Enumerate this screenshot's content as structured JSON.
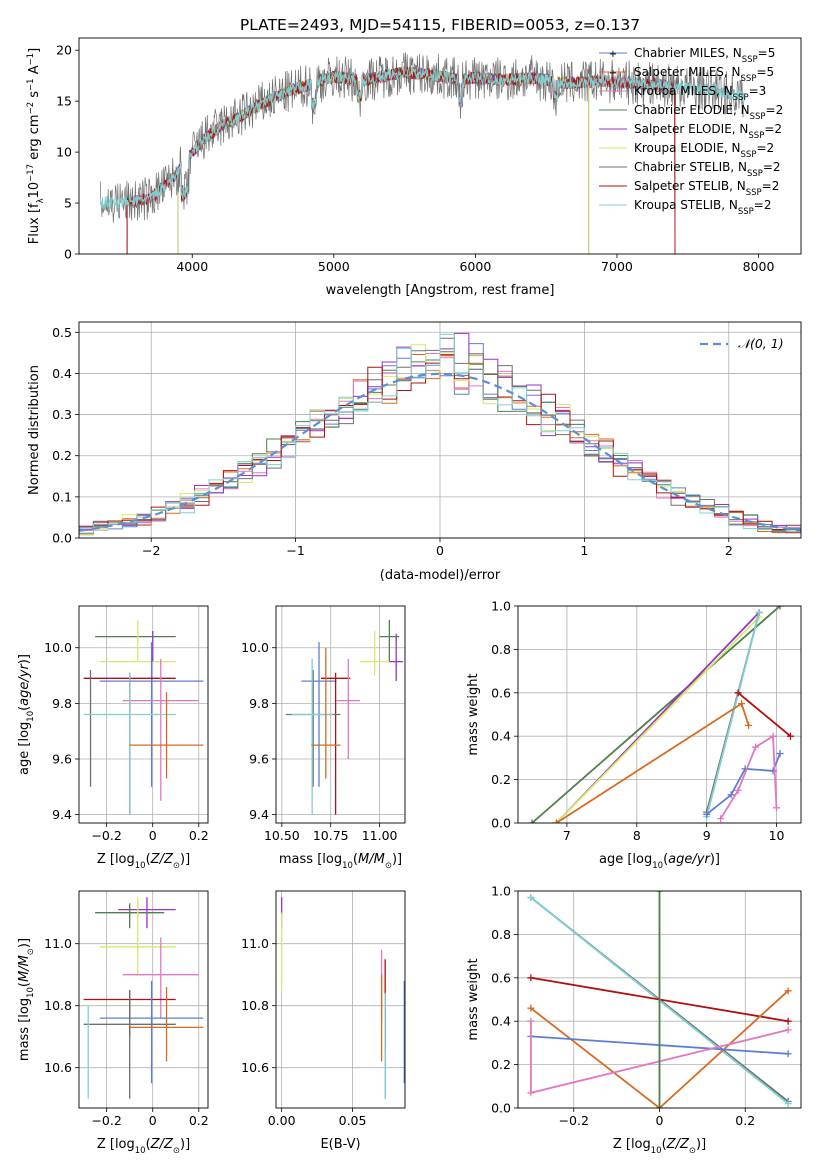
{
  "figure": {
    "title": "PLATE=2493, MJD=54115, FIBERID=0053, z=0.137"
  },
  "colors": {
    "Chabrier MILES": "#5b7fd6",
    "Salpeter MILES": "#d96a21",
    "Kroupa MILES": "#e377c2",
    "Chabrier ELODIE": "#4f7f50",
    "Salpeter ELODIE": "#9a32c8",
    "Kroupa ELODIE": "#d7e86a",
    "Chabrier STELIB": "#707070",
    "Salpeter STELIB": "#b01010",
    "Kroupa STELIB": "#7fd0d0"
  },
  "chart_data": [
    {
      "id": "spectrum",
      "type": "line",
      "xlabel": "wavelength [Angstrom, rest frame]",
      "ylabel_parts": [
        "Flux [f",
        "λ",
        "10",
        "−17",
        " erg cm",
        "−2",
        " s",
        "−1",
        " A",
        "−1",
        "]"
      ],
      "xlim": [
        3200,
        8300
      ],
      "ylim": [
        0,
        21.2
      ],
      "xticks": [
        4000,
        5000,
        6000,
        7000,
        8000
      ],
      "yticks": [
        0,
        5,
        10,
        15,
        20
      ],
      "legend": [
        {
          "name": "Chabrier MILES",
          "nssp": "5"
        },
        {
          "name": "Salpeter MILES",
          "nssp": "5"
        },
        {
          "name": "Kroupa MILES",
          "nssp": "3"
        },
        {
          "name": "Chabrier ELODIE",
          "nssp": "2"
        },
        {
          "name": "Salpeter ELODIE",
          "nssp": "2"
        },
        {
          "name": "Kroupa ELODIE",
          "nssp": "2"
        },
        {
          "name": "Chabrier STELIB",
          "nssp": "2"
        },
        {
          "name": "Salpeter STELIB",
          "nssp": "2"
        },
        {
          "name": "Kroupa STELIB",
          "nssp": "2"
        }
      ],
      "continuum": [
        [
          3350,
          5.0
        ],
        [
          3600,
          5.2
        ],
        [
          3700,
          5.5
        ],
        [
          3800,
          6.6
        ],
        [
          3900,
          8.0
        ],
        [
          3950,
          9.0
        ],
        [
          4000,
          10.0
        ],
        [
          4100,
          11.5
        ],
        [
          4200,
          12.5
        ],
        [
          4300,
          13.2
        ],
        [
          4400,
          14.0
        ],
        [
          4500,
          14.8
        ],
        [
          4600,
          15.5
        ],
        [
          4700,
          16.0
        ],
        [
          4800,
          16.5
        ],
        [
          4900,
          17.0
        ],
        [
          5000,
          17.4
        ],
        [
          5100,
          17.2
        ],
        [
          5200,
          17.0
        ],
        [
          5300,
          17.3
        ],
        [
          5400,
          17.6
        ],
        [
          5500,
          17.8
        ],
        [
          5600,
          17.7
        ],
        [
          5700,
          17.6
        ],
        [
          5800,
          17.3
        ],
        [
          5900,
          17.0
        ],
        [
          6000,
          17.3
        ],
        [
          6100,
          17.2
        ],
        [
          6200,
          17.1
        ],
        [
          6300,
          17.2
        ],
        [
          6400,
          17.3
        ],
        [
          6500,
          17.1
        ],
        [
          6600,
          16.8
        ],
        [
          6700,
          16.8
        ],
        [
          6800,
          16.9
        ],
        [
          6900,
          17.0
        ],
        [
          7000,
          16.9
        ],
        [
          7100,
          16.8
        ],
        [
          7200,
          16.7
        ],
        [
          7300,
          16.6
        ],
        [
          7400,
          16.4
        ],
        [
          7500,
          16.3
        ],
        [
          7600,
          16.2
        ],
        [
          7700,
          16.1
        ],
        [
          7800,
          15.7
        ],
        [
          7900,
          15.5
        ]
      ],
      "model_ranges": {
        "Chabrier MILES": [
          3540,
          7410
        ],
        "Salpeter MILES": [
          3540,
          7410
        ],
        "Kroupa MILES": [
          3540,
          7410
        ],
        "Chabrier ELODIE": [
          3900,
          6800
        ],
        "Salpeter ELODIE": [
          3900,
          6800
        ],
        "Kroupa ELODIE": [
          3900,
          6800
        ],
        "Chabrier STELIB": [
          3350,
          7900
        ],
        "Salpeter STELIB": [
          3540,
          7410
        ],
        "Kroupa STELIB": [
          3350,
          7900
        ]
      }
    },
    {
      "id": "residual-histogram",
      "type": "line",
      "xlabel": "(data-model)/error",
      "ylabel": "Normed distribution",
      "xlim": [
        -2.5,
        2.5
      ],
      "ylim": [
        0,
        0.525
      ],
      "xticks": [
        -2,
        -1,
        0,
        1,
        2
      ],
      "yticks": [
        0.0,
        0.1,
        0.2,
        0.3,
        0.4,
        0.5
      ],
      "bin_width": 0.1,
      "legend_label": "𝒩(0, 1)",
      "normal": {
        "mu": 0,
        "sigma": 1
      }
    },
    {
      "id": "age-vs-metallicity",
      "type": "scatter",
      "xlabel": "Z [log10(Z/Z⊙)]",
      "ylabel": "age [log10(age/yr)]",
      "xlim": [
        -0.32,
        0.24
      ],
      "ylim": [
        9.37,
        10.15
      ],
      "xticks": [
        -0.2,
        0.0,
        0.2
      ],
      "yticks": [
        9.4,
        9.6,
        9.8,
        10.0
      ],
      "points": [
        {
          "model": "Chabrier ELODIE",
          "x": [
            -0.25,
            0.1
          ],
          "y": 10.04,
          "yerr": [
            10.04,
            10.04
          ]
        },
        {
          "model": "Kroupa ELODIE",
          "x": [
            -0.23,
            0.1
          ],
          "y": 9.95,
          "yerr": [
            9.95,
            10.1
          ]
        },
        {
          "model": "Salpeter ELODIE",
          "x": [
            0.0,
            0.0
          ],
          "y": 9.95,
          "yerr": [
            9.95,
            10.06
          ]
        },
        {
          "model": "Chabrier MILES",
          "x": [
            -0.23,
            0.22
          ],
          "y": 9.88,
          "yerr": [
            9.5,
            10.02
          ]
        },
        {
          "model": "Salpeter STELIB",
          "x": [
            -0.3,
            0.1
          ],
          "y": 9.89,
          "yerr": [
            9.4,
            9.91
          ]
        },
        {
          "model": "Chabrier STELIB",
          "x": [
            -0.27,
            -0.27
          ],
          "y": 9.89,
          "yerr": [
            9.5,
            9.92
          ]
        },
        {
          "model": "Kroupa MILES",
          "x": [
            -0.13,
            0.2
          ],
          "y": 9.81,
          "yerr": [
            9.45,
            9.96
          ]
        },
        {
          "model": "Kroupa STELIB",
          "x": [
            -0.3,
            0.1
          ],
          "y": 9.76,
          "yerr": [
            9.4,
            9.91
          ]
        },
        {
          "model": "Salpeter MILES",
          "x": [
            -0.1,
            0.22
          ],
          "y": 9.65,
          "yerr": [
            9.53,
            9.84
          ]
        }
      ]
    },
    {
      "id": "age-vs-mass",
      "type": "scatter",
      "xlabel": "mass [log10(M/M⊙)]",
      "ylabel": "",
      "xlim": [
        10.47,
        11.13
      ],
      "ylim": [
        9.37,
        10.15
      ],
      "xticks": [
        10.5,
        10.75,
        11.0
      ],
      "xticklabels": [
        "10.50",
        "10.75",
        "11.00"
      ],
      "yticks": [
        9.4,
        9.6,
        9.8,
        10.0
      ],
      "points": [
        {
          "model": "Chabrier ELODIE",
          "x": [
            11.0,
            11.1
          ],
          "y": 10.04,
          "yerr": [
            9.95,
            10.1
          ]
        },
        {
          "model": "Kroupa ELODIE",
          "x": [
            10.9,
            11.05
          ],
          "y": 9.95,
          "yerr": [
            9.9,
            10.06
          ]
        },
        {
          "model": "Salpeter ELODIE",
          "x": [
            11.05,
            11.12
          ],
          "y": 9.95,
          "yerr": [
            9.88,
            10.05
          ]
        },
        {
          "model": "Chabrier MILES",
          "x": [
            10.6,
            10.78
          ],
          "y": 9.88,
          "yerr": [
            9.5,
            10.02
          ]
        },
        {
          "model": "Salpeter STELIB",
          "x": [
            10.7,
            10.85
          ],
          "y": 9.89,
          "yerr": [
            9.4,
            9.91
          ]
        },
        {
          "model": "Kroupa MILES",
          "x": [
            10.78,
            10.9
          ],
          "y": 9.81,
          "yerr": [
            9.6,
            9.96
          ]
        },
        {
          "model": "Chabrier STELIB",
          "x": [
            10.52,
            10.8
          ],
          "y": 9.76,
          "yerr": [
            9.5,
            9.92
          ]
        },
        {
          "model": "Kroupa STELIB",
          "x": [
            10.55,
            10.76
          ],
          "y": 9.76,
          "yerr": [
            9.4,
            9.96
          ]
        },
        {
          "model": "Salpeter MILES",
          "x": [
            10.65,
            10.8
          ],
          "y": 9.65,
          "yerr": [
            9.53,
            10.0
          ]
        }
      ]
    },
    {
      "id": "mass-weight-vs-age",
      "type": "line",
      "xlabel": "age [log10(age/yr)]",
      "ylabel": "mass weight",
      "xlim": [
        6.3,
        10.35
      ],
      "ylim": [
        0,
        1.0
      ],
      "xticks": [
        7,
        8,
        9,
        10
      ],
      "yticks": [
        0.0,
        0.2,
        0.4,
        0.6,
        0.8,
        1.0
      ],
      "series": [
        {
          "model": "Chabrier ELODIE",
          "x": [
            6.5,
            10.05
          ],
          "y": [
            0.0,
            1.0
          ]
        },
        {
          "model": "Salpeter ELODIE",
          "x": [
            6.85,
            9.75
          ],
          "y": [
            0.0,
            0.97
          ]
        },
        {
          "model": "Kroupa ELODIE",
          "x": [
            6.85,
            9.75
          ],
          "y": [
            0.0,
            0.95
          ]
        },
        {
          "model": "Chabrier STELIB",
          "x": [
            9.0,
            9.75
          ],
          "y": [
            0.05,
            0.97
          ]
        },
        {
          "model": "Kroupa STELIB",
          "x": [
            9.0,
            9.75
          ],
          "y": [
            0.03,
            0.97
          ]
        },
        {
          "model": "Salpeter MILES",
          "x": [
            6.85,
            9.5,
            9.6
          ],
          "y": [
            0.0,
            0.55,
            0.45
          ]
        },
        {
          "model": "Salpeter STELIB",
          "x": [
            9.45,
            10.2
          ],
          "y": [
            0.6,
            0.4
          ]
        },
        {
          "model": "Chabrier MILES",
          "x": [
            9.0,
            9.35,
            9.55,
            9.95,
            10.05
          ],
          "y": [
            0.04,
            0.13,
            0.25,
            0.24,
            0.32
          ]
        },
        {
          "model": "Kroupa MILES",
          "x": [
            9.2,
            9.45,
            9.7,
            9.95,
            10.0
          ],
          "y": [
            0.02,
            0.15,
            0.35,
            0.4,
            0.07
          ]
        }
      ]
    },
    {
      "id": "mass-vs-metallicity",
      "type": "scatter",
      "xlabel": "Z [log10(Z/Z⊙)]",
      "ylabel": "mass [log10(M/M⊙)]",
      "xlim": [
        -0.32,
        0.24
      ],
      "ylim": [
        10.47,
        11.17
      ],
      "xticks": [
        -0.2,
        0.0,
        0.2
      ],
      "yticks": [
        10.6,
        10.8,
        11.0
      ],
      "points": [
        {
          "model": "Salpeter ELODIE",
          "x": [
            -0.15,
            0.1
          ],
          "y": 11.11,
          "yerr": [
            11.05,
            11.15
          ]
        },
        {
          "model": "Chabrier ELODIE",
          "x": [
            -0.25,
            0.05
          ],
          "y": 11.1,
          "yerr": [
            11.05,
            11.13
          ]
        },
        {
          "model": "Kroupa ELODIE",
          "x": [
            -0.23,
            0.1
          ],
          "y": 10.99,
          "yerr": [
            10.9,
            11.15
          ]
        },
        {
          "model": "Kroupa MILES",
          "x": [
            -0.13,
            0.2
          ],
          "y": 10.9,
          "yerr": [
            10.76,
            11.02
          ]
        },
        {
          "model": "Salpeter STELIB",
          "x": [
            -0.3,
            0.1
          ],
          "y": 10.82,
          "yerr": [
            10.7,
            10.85
          ]
        },
        {
          "model": "Chabrier MILES",
          "x": [
            -0.23,
            0.22
          ],
          "y": 10.76,
          "yerr": [
            10.55,
            10.88
          ]
        },
        {
          "model": "Chabrier STELIB",
          "x": [
            -0.3,
            0.1
          ],
          "y": 10.74,
          "yerr": [
            10.5,
            10.85
          ]
        },
        {
          "model": "Salpeter MILES",
          "x": [
            -0.1,
            0.22
          ],
          "y": 10.73,
          "yerr": [
            10.62,
            10.86
          ]
        },
        {
          "model": "Kroupa STELIB",
          "x": [
            -0.28,
            -0.28
          ],
          "y": 10.74,
          "yerr": [
            10.5,
            10.8
          ]
        }
      ]
    },
    {
      "id": "mass-vs-extinction",
      "type": "scatter",
      "xlabel": "E(B-V)",
      "ylabel": "",
      "xlim": [
        -0.004,
        0.087
      ],
      "ylim": [
        10.47,
        11.17
      ],
      "xticks": [
        0.0,
        0.05
      ],
      "xticklabels": [
        "0.00",
        "0.05"
      ],
      "yticks": [
        10.6,
        10.8,
        11.0
      ],
      "points": [
        {
          "model": "Salpeter ELODIE",
          "x": [
            0.0,
            0.0
          ],
          "y": 11.11,
          "yerr": [
            11.05,
            11.15
          ]
        },
        {
          "model": "Kroupa ELODIE",
          "x": [
            0.0,
            0.0
          ],
          "y": 10.99,
          "yerr": [
            10.85,
            11.1
          ]
        },
        {
          "model": "Kroupa MILES",
          "x": [
            0.0705,
            0.0705
          ],
          "y": 10.9,
          "yerr": [
            10.75,
            10.98
          ]
        },
        {
          "model": "Salpeter MILES",
          "x": [
            0.0705,
            0.0705
          ],
          "y": 10.8,
          "yerr": [
            10.62,
            10.9
          ]
        },
        {
          "model": "Salpeter STELIB",
          "x": [
            0.073,
            0.073
          ],
          "y": 10.82,
          "yerr": [
            10.65,
            10.95
          ]
        },
        {
          "model": "Chabrier STELIB",
          "x": [
            0.073,
            0.073
          ],
          "y": 10.74,
          "yerr": [
            10.5,
            10.8
          ]
        },
        {
          "model": "Kroupa STELIB",
          "x": [
            0.073,
            0.073
          ],
          "y": 10.74,
          "yerr": [
            10.5,
            10.84
          ]
        },
        {
          "model": "Chabrier MILES",
          "x": [
            0.0865,
            0.0865
          ],
          "y": 10.76,
          "yerr": [
            10.55,
            10.88
          ]
        }
      ]
    },
    {
      "id": "mass-weight-vs-metallicity",
      "type": "line",
      "xlabel": "Z [log10(Z/Z⊙)]",
      "ylabel": "mass weight",
      "xlim": [
        -0.33,
        0.33
      ],
      "ylim": [
        0,
        1.0
      ],
      "xticks": [
        -0.2,
        0.0,
        0.2
      ],
      "yticks": [
        0.0,
        0.2,
        0.4,
        0.6,
        0.8,
        1.0
      ],
      "series": [
        {
          "model": "Chabrier STELIB",
          "x": [
            -0.3,
            0.3
          ],
          "y": [
            0.97,
            0.03
          ]
        },
        {
          "model": "Kroupa STELIB",
          "x": [
            -0.3,
            0.3
          ],
          "y": [
            0.97,
            0.02
          ]
        },
        {
          "model": "Salpeter STELIB",
          "x": [
            -0.3,
            0.3
          ],
          "y": [
            0.6,
            0.4
          ]
        },
        {
          "model": "Salpeter MILES",
          "x": [
            -0.3,
            0.0,
            0.3
          ],
          "y": [
            0.46,
            0.0,
            0.54
          ]
        },
        {
          "model": "Chabrier MILES",
          "x": [
            -0.3,
            0.3
          ],
          "y": [
            0.33,
            0.25
          ]
        },
        {
          "model": "Kroupa MILES",
          "x": [
            -0.3,
            -0.3,
            0.3
          ],
          "y": [
            0.4,
            0.07,
            0.36
          ]
        },
        {
          "model": "Kroupa ELODIE",
          "x": [
            0.0,
            0.0
          ],
          "y": [
            0.0,
            1.0
          ]
        },
        {
          "model": "Chabrier ELODIE",
          "x": [
            0.0,
            0.0
          ],
          "y": [
            0.0,
            1.0
          ]
        }
      ]
    }
  ]
}
